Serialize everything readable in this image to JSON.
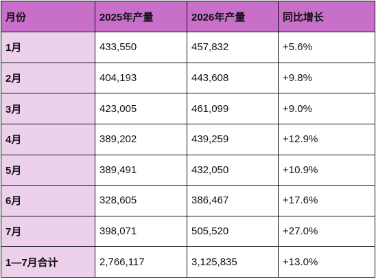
{
  "table": {
    "header": [
      "月份",
      "2025年产量",
      "2026年产量",
      "同比增长"
    ],
    "rows": [
      [
        "1月",
        "433,550",
        "457,832",
        "+5.6%"
      ],
      [
        "2月",
        "404,193",
        "443,608",
        "+9.8%"
      ],
      [
        "3月",
        "423,005",
        "461,099",
        "+9.0%"
      ],
      [
        "4月",
        "389,202",
        "439,259",
        "+12.9%"
      ],
      [
        "5月",
        "389,491",
        "432,050",
        "+10.9%"
      ],
      [
        "6月",
        "328,605",
        "386,467",
        "+17.6%"
      ],
      [
        "7月",
        "398,071",
        "505,520",
        "+27.0%"
      ],
      [
        "1—7月合计",
        "2,766,117",
        "3,125,835",
        "+13.0%"
      ]
    ]
  }
}
